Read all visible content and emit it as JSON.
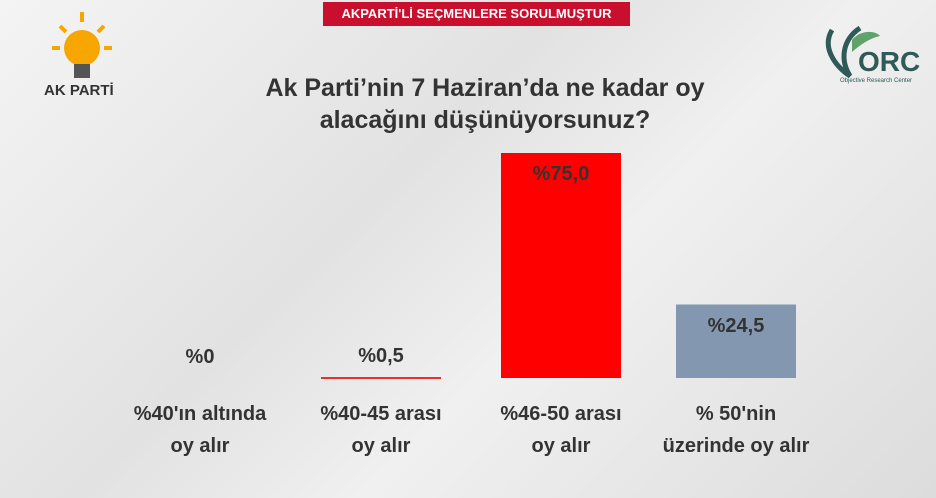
{
  "banner": "AKPARTİ'Lİ SEÇMENLERE SORULMUŞTUR",
  "left_logo": {
    "text": "AK PARTİ"
  },
  "right_logo": {
    "text": "ORC",
    "subtext": "Objective Research Center"
  },
  "chart_data": {
    "type": "bar",
    "title": "Ak Parti’nin 7 Haziran’da ne kadar oy alacağını düşünüyorsunuz?",
    "categories": [
      "%40'ın altında oy alır",
      "%40-45 arası oy alır",
      "%46-50 arası oy alır",
      "% 50'nin üzerinde oy alır"
    ],
    "values": [
      0,
      0.5,
      75.0,
      24.5
    ],
    "value_labels": [
      "%0",
      "%0,5",
      "%75,0",
      "%24,5"
    ],
    "colors": [
      "#e8312f",
      "#e8312f",
      "#ff0000",
      "#8497b0"
    ]
  }
}
